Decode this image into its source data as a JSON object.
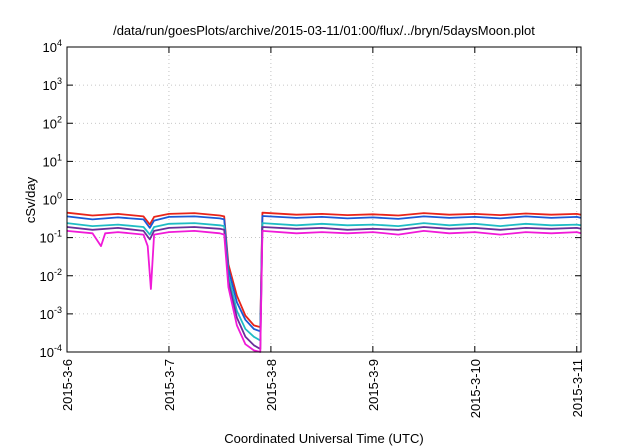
{
  "chart_data": {
    "type": "line",
    "title": "/data/run/goesPlots/archive/2015-03-11/01:00/flux/../bryn/5daysMoon.plot",
    "xlabel": "Coordinated Universal Time (UTC)",
    "ylabel": "cSv/day",
    "yscale": "log",
    "ylim": [
      0.0001,
      10000
    ],
    "xlim": [
      "2015-03-06T00:00",
      "2015-03-11T01:00"
    ],
    "grid": true,
    "legend": "none",
    "x_ticks": [
      {
        "date": "2015-03-06T00:00",
        "label": "2015-3-6"
      },
      {
        "date": "2015-03-07T00:00",
        "label": "2015-3-7"
      },
      {
        "date": "2015-03-08T00:00",
        "label": "2015-3-8"
      },
      {
        "date": "2015-03-09T00:00",
        "label": "2015-3-9"
      },
      {
        "date": "2015-03-10T00:00",
        "label": "2015-3-10"
      },
      {
        "date": "2015-03-11T00:00",
        "label": "2015-3-11"
      }
    ],
    "y_ticks": [
      {
        "value": 0.0001,
        "base": "10",
        "exp": "-4"
      },
      {
        "value": 0.001,
        "base": "10",
        "exp": "-3"
      },
      {
        "value": 0.01,
        "base": "10",
        "exp": "-2"
      },
      {
        "value": 0.1,
        "base": "10",
        "exp": "-1"
      },
      {
        "value": 1,
        "base": "10",
        "exp": "0"
      },
      {
        "value": 10,
        "base": "10",
        "exp": "1"
      },
      {
        "value": 100,
        "base": "10",
        "exp": "2"
      },
      {
        "value": 1000,
        "base": "10",
        "exp": "3"
      },
      {
        "value": 10000,
        "base": "10",
        "exp": "4"
      }
    ],
    "series": [
      {
        "color": "#e8241a",
        "values": [
          {
            "x": "2015-03-06T00:00",
            "y": 0.45
          },
          {
            "x": "2015-03-06T06:00",
            "y": 0.38
          },
          {
            "x": "2015-03-06T12:00",
            "y": 0.42
          },
          {
            "x": "2015-03-06T18:00",
            "y": 0.36
          },
          {
            "x": "2015-03-06T19:30",
            "y": 0.22
          },
          {
            "x": "2015-03-06T20:30",
            "y": 0.35
          },
          {
            "x": "2015-03-07T00:00",
            "y": 0.42
          },
          {
            "x": "2015-03-07T06:00",
            "y": 0.44
          },
          {
            "x": "2015-03-07T12:00",
            "y": 0.38
          },
          {
            "x": "2015-03-07T13:00",
            "y": 0.36
          },
          {
            "x": "2015-03-07T14:00",
            "y": 0.02
          },
          {
            "x": "2015-03-07T16:00",
            "y": 0.003
          },
          {
            "x": "2015-03-07T18:00",
            "y": 0.0009
          },
          {
            "x": "2015-03-07T20:00",
            "y": 0.0005
          },
          {
            "x": "2015-03-07T21:30",
            "y": 0.00045
          },
          {
            "x": "2015-03-07T22:00",
            "y": 0.45
          },
          {
            "x": "2015-03-08T06:00",
            "y": 0.4
          },
          {
            "x": "2015-03-08T12:00",
            "y": 0.42
          },
          {
            "x": "2015-03-08T18:00",
            "y": 0.39
          },
          {
            "x": "2015-03-09T00:00",
            "y": 0.41
          },
          {
            "x": "2015-03-09T06:00",
            "y": 0.38
          },
          {
            "x": "2015-03-09T12:00",
            "y": 0.44
          },
          {
            "x": "2015-03-09T18:00",
            "y": 0.4
          },
          {
            "x": "2015-03-10T00:00",
            "y": 0.42
          },
          {
            "x": "2015-03-10T06:00",
            "y": 0.39
          },
          {
            "x": "2015-03-10T12:00",
            "y": 0.43
          },
          {
            "x": "2015-03-10T18:00",
            "y": 0.4
          },
          {
            "x": "2015-03-11T00:00",
            "y": 0.42
          },
          {
            "x": "2015-03-11T01:00",
            "y": 0.4
          }
        ]
      },
      {
        "color": "#1a5ad6",
        "values": [
          {
            "x": "2015-03-06T00:00",
            "y": 0.36
          },
          {
            "x": "2015-03-06T06:00",
            "y": 0.3
          },
          {
            "x": "2015-03-06T12:00",
            "y": 0.34
          },
          {
            "x": "2015-03-06T18:00",
            "y": 0.3
          },
          {
            "x": "2015-03-06T19:30",
            "y": 0.18
          },
          {
            "x": "2015-03-06T20:30",
            "y": 0.28
          },
          {
            "x": "2015-03-07T00:00",
            "y": 0.35
          },
          {
            "x": "2015-03-07T06:00",
            "y": 0.36
          },
          {
            "x": "2015-03-07T12:00",
            "y": 0.32
          },
          {
            "x": "2015-03-07T13:00",
            "y": 0.3
          },
          {
            "x": "2015-03-07T14:00",
            "y": 0.015
          },
          {
            "x": "2015-03-07T16:00",
            "y": 0.002
          },
          {
            "x": "2015-03-07T18:00",
            "y": 0.0007
          },
          {
            "x": "2015-03-07T20:00",
            "y": 0.0004
          },
          {
            "x": "2015-03-07T21:30",
            "y": 0.00035
          },
          {
            "x": "2015-03-07T22:00",
            "y": 0.37
          },
          {
            "x": "2015-03-08T06:00",
            "y": 0.33
          },
          {
            "x": "2015-03-08T12:00",
            "y": 0.35
          },
          {
            "x": "2015-03-08T18:00",
            "y": 0.32
          },
          {
            "x": "2015-03-09T00:00",
            "y": 0.34
          },
          {
            "x": "2015-03-09T06:00",
            "y": 0.31
          },
          {
            "x": "2015-03-09T12:00",
            "y": 0.36
          },
          {
            "x": "2015-03-09T18:00",
            "y": 0.33
          },
          {
            "x": "2015-03-10T00:00",
            "y": 0.35
          },
          {
            "x": "2015-03-10T06:00",
            "y": 0.32
          },
          {
            "x": "2015-03-10T12:00",
            "y": 0.36
          },
          {
            "x": "2015-03-10T18:00",
            "y": 0.33
          },
          {
            "x": "2015-03-11T00:00",
            "y": 0.35
          },
          {
            "x": "2015-03-11T01:00",
            "y": 0.33
          }
        ]
      },
      {
        "color": "#1fbcc4",
        "values": [
          {
            "x": "2015-03-06T00:00",
            "y": 0.24
          },
          {
            "x": "2015-03-06T06:00",
            "y": 0.2
          },
          {
            "x": "2015-03-06T12:00",
            "y": 0.22
          },
          {
            "x": "2015-03-06T18:00",
            "y": 0.19
          },
          {
            "x": "2015-03-06T19:30",
            "y": 0.12
          },
          {
            "x": "2015-03-06T20:30",
            "y": 0.19
          },
          {
            "x": "2015-03-07T00:00",
            "y": 0.23
          },
          {
            "x": "2015-03-07T06:00",
            "y": 0.24
          },
          {
            "x": "2015-03-07T12:00",
            "y": 0.21
          },
          {
            "x": "2015-03-07T13:00",
            "y": 0.2
          },
          {
            "x": "2015-03-07T14:00",
            "y": 0.01
          },
          {
            "x": "2015-03-07T16:00",
            "y": 0.0012
          },
          {
            "x": "2015-03-07T18:00",
            "y": 0.0004
          },
          {
            "x": "2015-03-07T20:00",
            "y": 0.00025
          },
          {
            "x": "2015-03-07T21:30",
            "y": 0.0002
          },
          {
            "x": "2015-03-07T22:00",
            "y": 0.24
          },
          {
            "x": "2015-03-08T06:00",
            "y": 0.21
          },
          {
            "x": "2015-03-08T12:00",
            "y": 0.23
          },
          {
            "x": "2015-03-08T18:00",
            "y": 0.21
          },
          {
            "x": "2015-03-09T00:00",
            "y": 0.22
          },
          {
            "x": "2015-03-09T06:00",
            "y": 0.2
          },
          {
            "x": "2015-03-09T12:00",
            "y": 0.24
          },
          {
            "x": "2015-03-09T18:00",
            "y": 0.21
          },
          {
            "x": "2015-03-10T00:00",
            "y": 0.23
          },
          {
            "x": "2015-03-10T06:00",
            "y": 0.2
          },
          {
            "x": "2015-03-10T12:00",
            "y": 0.23
          },
          {
            "x": "2015-03-10T18:00",
            "y": 0.21
          },
          {
            "x": "2015-03-11T00:00",
            "y": 0.22
          },
          {
            "x": "2015-03-11T01:00",
            "y": 0.21
          }
        ]
      },
      {
        "color": "#6a2f9a",
        "values": [
          {
            "x": "2015-03-06T00:00",
            "y": 0.19
          },
          {
            "x": "2015-03-06T06:00",
            "y": 0.16
          },
          {
            "x": "2015-03-06T12:00",
            "y": 0.18
          },
          {
            "x": "2015-03-06T18:00",
            "y": 0.15
          },
          {
            "x": "2015-03-06T19:30",
            "y": 0.09
          },
          {
            "x": "2015-03-06T20:30",
            "y": 0.15
          },
          {
            "x": "2015-03-07T00:00",
            "y": 0.18
          },
          {
            "x": "2015-03-07T06:00",
            "y": 0.19
          },
          {
            "x": "2015-03-07T12:00",
            "y": 0.17
          },
          {
            "x": "2015-03-07T13:00",
            "y": 0.16
          },
          {
            "x": "2015-03-07T14:00",
            "y": 0.007
          },
          {
            "x": "2015-03-07T16:00",
            "y": 0.0008
          },
          {
            "x": "2015-03-07T18:00",
            "y": 0.00025
          },
          {
            "x": "2015-03-07T20:00",
            "y": 0.00015
          },
          {
            "x": "2015-03-07T21:30",
            "y": 0.00012
          },
          {
            "x": "2015-03-07T22:00",
            "y": 0.19
          },
          {
            "x": "2015-03-08T06:00",
            "y": 0.17
          },
          {
            "x": "2015-03-08T12:00",
            "y": 0.18
          },
          {
            "x": "2015-03-08T18:00",
            "y": 0.16
          },
          {
            "x": "2015-03-09T00:00",
            "y": 0.17
          },
          {
            "x": "2015-03-09T06:00",
            "y": 0.16
          },
          {
            "x": "2015-03-09T12:00",
            "y": 0.19
          },
          {
            "x": "2015-03-09T18:00",
            "y": 0.17
          },
          {
            "x": "2015-03-10T00:00",
            "y": 0.18
          },
          {
            "x": "2015-03-10T06:00",
            "y": 0.16
          },
          {
            "x": "2015-03-10T12:00",
            "y": 0.18
          },
          {
            "x": "2015-03-10T18:00",
            "y": 0.17
          },
          {
            "x": "2015-03-11T00:00",
            "y": 0.18
          },
          {
            "x": "2015-03-11T01:00",
            "y": 0.17
          }
        ]
      },
      {
        "color": "#f01ad8",
        "values": [
          {
            "x": "2015-03-06T00:00",
            "y": 0.15
          },
          {
            "x": "2015-03-06T06:00",
            "y": 0.13
          },
          {
            "x": "2015-03-06T08:00",
            "y": 0.06
          },
          {
            "x": "2015-03-06T09:00",
            "y": 0.13
          },
          {
            "x": "2015-03-06T12:00",
            "y": 0.14
          },
          {
            "x": "2015-03-06T18:00",
            "y": 0.12
          },
          {
            "x": "2015-03-06T19:00",
            "y": 0.06
          },
          {
            "x": "2015-03-06T19:45",
            "y": 0.0045
          },
          {
            "x": "2015-03-06T20:30",
            "y": 0.12
          },
          {
            "x": "2015-03-07T00:00",
            "y": 0.14
          },
          {
            "x": "2015-03-07T06:00",
            "y": 0.15
          },
          {
            "x": "2015-03-07T12:00",
            "y": 0.13
          },
          {
            "x": "2015-03-07T13:00",
            "y": 0.12
          },
          {
            "x": "2015-03-07T14:00",
            "y": 0.005
          },
          {
            "x": "2015-03-07T16:00",
            "y": 0.0005
          },
          {
            "x": "2015-03-07T18:00",
            "y": 0.00016
          },
          {
            "x": "2015-03-07T20:00",
            "y": 0.00011
          },
          {
            "x": "2015-03-07T21:30",
            "y": 0.0001
          },
          {
            "x": "2015-03-07T22:00",
            "y": 0.15
          },
          {
            "x": "2015-03-08T06:00",
            "y": 0.13
          },
          {
            "x": "2015-03-08T12:00",
            "y": 0.14
          },
          {
            "x": "2015-03-08T18:00",
            "y": 0.13
          },
          {
            "x": "2015-03-09T00:00",
            "y": 0.14
          },
          {
            "x": "2015-03-09T06:00",
            "y": 0.12
          },
          {
            "x": "2015-03-09T12:00",
            "y": 0.15
          },
          {
            "x": "2015-03-09T18:00",
            "y": 0.13
          },
          {
            "x": "2015-03-10T00:00",
            "y": 0.14
          },
          {
            "x": "2015-03-10T06:00",
            "y": 0.12
          },
          {
            "x": "2015-03-10T12:00",
            "y": 0.14
          },
          {
            "x": "2015-03-10T18:00",
            "y": 0.13
          },
          {
            "x": "2015-03-11T00:00",
            "y": 0.14
          },
          {
            "x": "2015-03-11T01:00",
            "y": 0.13
          }
        ]
      }
    ]
  }
}
